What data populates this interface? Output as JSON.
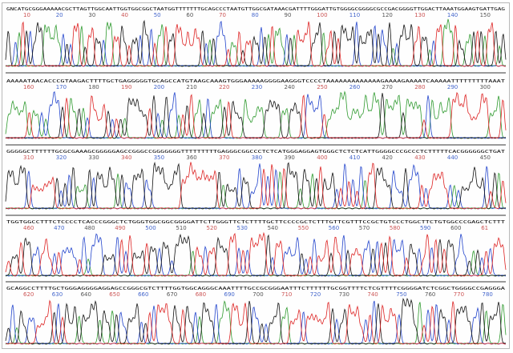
{
  "colors": {
    "A": "#2e9a2e",
    "C": "#2244cc",
    "G": "#111111",
    "T": "#dd2222",
    "tick": [
      "#cc5555",
      "#4466cc",
      "#555555"
    ],
    "divider": "#9a9a9a"
  },
  "panels": [
    {
      "sequence": "GNCATGCGGGAAAAACGCTTAGTTGGCAATTGGTGGCGGCTAATGGTTTTTTTGCAGCCCTAATGTTGGCGATAAACGATTTTGGGATTGTGGGGCGGGGCGCCGACGGGGTTGGACTTAAATGGAAGTGATTGAG",
      "ticks": [
        "10",
        "20",
        "30",
        "40",
        "50",
        "60",
        "70",
        "80",
        "90",
        "100",
        "110",
        "120",
        "130",
        "140",
        "150"
      ]
    },
    {
      "sequence": "AAAAATAACACCCGTAAGACTTTTGCTGAGGGGGTGCAGCCATGTAAGCAAAGTGGGAAAAAGGGGAAGGGTCCCCTAAAAAAAAAAAAAGAAAAGAAAATCAAAAATTTTTTTTTAAAT",
      "ticks": [
        "160",
        "170",
        "180",
        "190",
        "200",
        "210",
        "220",
        "230",
        "240",
        "250",
        "260",
        "270",
        "280",
        "290",
        "300"
      ]
    },
    {
      "sequence": "GGGGGCTTTTTTGCGCGAAAGCGGGGGAGCCGGGCCGGGGGGGTTTTTTTTTGAGGGCGGCCCTCTCATGGGAGGAGTGGGCTCTCTCATTGGGGCCCGCCCTCTTTTTCACGGGGGGCTGAT",
      "ticks": [
        "310",
        "320",
        "330",
        "340",
        "350",
        "360",
        "370",
        "380",
        "390",
        "400",
        "410",
        "420",
        "430",
        "440",
        "450"
      ]
    },
    {
      "sequence": "TGGTGGCCTTTCTCCCCTCACCCGGGCTCTGGGTGGCGGCGGGGATTCTTGGGTTCTCTTTTGCTTCCCCGCTCTTTGTTCGTTTCCGCTGTCCCTGGCTTCTGTGGCCCGAGCTCTTT",
      "ticks": [
        "460",
        "470",
        "480",
        "490",
        "500",
        "510",
        "520",
        "530",
        "540",
        "550",
        "560",
        "570",
        "580",
        "590",
        "600",
        "61"
      ]
    },
    {
      "sequence": "GCAGGCCTTTTGCTGGGAGGGGAGGAGCCGGGCGTCTTTTGGTGGCAGGGCAAATTTTGCCGCGGGAATTTCTTTTTTGCGGTTTTCTCGTTTTCGGGGATCTCGGCTGGGGCCGAGGGA",
      "ticks": [
        "620",
        "630",
        "640",
        "650",
        "660",
        "670",
        "680",
        "690",
        "700",
        "710",
        "720",
        "730",
        "740",
        "750",
        "760",
        "770",
        "780"
      ]
    }
  ]
}
